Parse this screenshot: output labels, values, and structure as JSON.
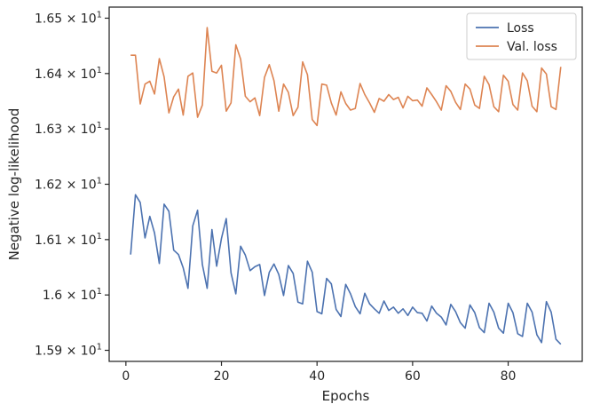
{
  "chart_data": {
    "type": "line",
    "xlabel": "Epochs",
    "ylabel": "Negative log-likelihood",
    "xlim": [
      -3.5,
      95.5
    ],
    "ylim": [
      15.88,
      16.52
    ],
    "x_ticks": [
      0,
      20,
      40,
      60,
      80
    ],
    "x_tick_labels": [
      "0",
      "20",
      "40",
      "60",
      "80"
    ],
    "y_ticks": [
      15.9,
      16.0,
      16.1,
      16.2,
      16.3,
      16.4,
      16.5
    ],
    "y_tick_labels": [
      {
        "mantissa": "1.59",
        "times": "×",
        "base": "10",
        "exp": "1"
      },
      {
        "mantissa": "1.6",
        "times": "×",
        "base": "10",
        "exp": "1"
      },
      {
        "mantissa": "1.61",
        "times": "×",
        "base": "10",
        "exp": "1"
      },
      {
        "mantissa": "1.62",
        "times": "×",
        "base": "10",
        "exp": "1"
      },
      {
        "mantissa": "1.63",
        "times": "×",
        "base": "10",
        "exp": "1"
      },
      {
        "mantissa": "1.64",
        "times": "×",
        "base": "10",
        "exp": "1"
      },
      {
        "mantissa": "1.65",
        "times": "×",
        "base": "10",
        "exp": "1"
      }
    ],
    "grid": false,
    "legend_position": "top-right",
    "series": [
      {
        "name": "Loss",
        "color": "#4c72b0",
        "x": [
          1,
          2,
          3,
          4,
          5,
          6,
          7,
          8,
          9,
          10,
          11,
          12,
          13,
          14,
          15,
          16,
          17,
          18,
          19,
          20,
          21,
          22,
          23,
          24,
          25,
          26,
          27,
          28,
          29,
          30,
          31,
          32,
          33,
          34,
          35,
          36,
          37,
          38,
          39,
          40,
          41,
          42,
          43,
          44,
          45,
          46,
          47,
          48,
          49,
          50,
          51,
          52,
          53,
          54,
          55,
          56,
          57,
          58,
          59,
          60,
          61,
          62,
          63,
          64,
          65,
          66,
          67,
          68,
          69,
          70,
          71,
          72,
          73,
          74,
          75,
          76,
          77,
          78,
          79,
          80,
          81,
          82,
          83,
          84,
          85,
          86,
          87,
          88,
          89,
          90,
          91
        ],
        "values": [
          16.073,
          16.181,
          16.167,
          16.103,
          16.142,
          16.112,
          16.057,
          16.164,
          16.151,
          16.081,
          16.073,
          16.049,
          16.012,
          16.125,
          16.153,
          16.055,
          16.012,
          16.118,
          16.052,
          16.102,
          16.138,
          16.04,
          16.002,
          16.088,
          16.072,
          16.044,
          16.051,
          16.055,
          15.999,
          16.041,
          16.056,
          16.037,
          15.999,
          16.053,
          16.039,
          15.987,
          15.984,
          16.061,
          16.041,
          15.97,
          15.966,
          16.03,
          16.02,
          15.974,
          15.961,
          16.019,
          16.002,
          15.979,
          15.966,
          16.003,
          15.984,
          15.975,
          15.967,
          15.989,
          15.972,
          15.978,
          15.967,
          15.975,
          15.963,
          15.978,
          15.968,
          15.967,
          15.953,
          15.98,
          15.967,
          15.96,
          15.946,
          15.983,
          15.97,
          15.95,
          15.94,
          15.982,
          15.968,
          15.941,
          15.932,
          15.985,
          15.969,
          15.94,
          15.931,
          15.985,
          15.968,
          15.93,
          15.925,
          15.985,
          15.969,
          15.928,
          15.914,
          15.988,
          15.969,
          15.92,
          15.911
        ]
      },
      {
        "name": "Val. loss",
        "color": "#dd8452",
        "x": [
          1,
          2,
          3,
          4,
          5,
          6,
          7,
          8,
          9,
          10,
          11,
          12,
          13,
          14,
          15,
          16,
          17,
          18,
          19,
          20,
          21,
          22,
          23,
          24,
          25,
          26,
          27,
          28,
          29,
          30,
          31,
          32,
          33,
          34,
          35,
          36,
          37,
          38,
          39,
          40,
          41,
          42,
          43,
          44,
          45,
          46,
          47,
          48,
          49,
          50,
          51,
          52,
          53,
          54,
          55,
          56,
          57,
          58,
          59,
          60,
          61,
          62,
          63,
          64,
          65,
          66,
          67,
          68,
          69,
          70,
          71,
          72,
          73,
          74,
          75,
          76,
          77,
          78,
          79,
          80,
          81,
          82,
          83,
          84,
          85,
          86,
          87,
          88,
          89,
          90,
          91
        ],
        "values": [
          16.433,
          16.433,
          16.345,
          16.381,
          16.386,
          16.363,
          16.427,
          16.394,
          16.329,
          16.358,
          16.372,
          16.325,
          16.395,
          16.401,
          16.321,
          16.343,
          16.483,
          16.404,
          16.401,
          16.415,
          16.332,
          16.347,
          16.452,
          16.426,
          16.359,
          16.349,
          16.356,
          16.324,
          16.393,
          16.416,
          16.387,
          16.332,
          16.381,
          16.366,
          16.324,
          16.339,
          16.421,
          16.398,
          16.317,
          16.306,
          16.381,
          16.379,
          16.347,
          16.325,
          16.367,
          16.346,
          16.334,
          16.337,
          16.382,
          16.362,
          16.347,
          16.33,
          16.355,
          16.35,
          16.362,
          16.353,
          16.357,
          16.338,
          16.359,
          16.351,
          16.352,
          16.341,
          16.374,
          16.362,
          16.349,
          16.334,
          16.378,
          16.368,
          16.348,
          16.335,
          16.381,
          16.372,
          16.343,
          16.337,
          16.395,
          16.38,
          16.34,
          16.331,
          16.397,
          16.386,
          16.344,
          16.334,
          16.401,
          16.387,
          16.341,
          16.331,
          16.41,
          16.399,
          16.34,
          16.335,
          16.412
        ]
      }
    ]
  }
}
